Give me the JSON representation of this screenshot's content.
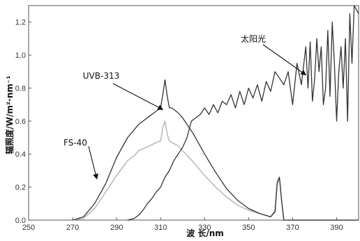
{
  "chart_data": {
    "type": "line",
    "title": "",
    "xlabel": "波 长/nm",
    "ylabel": "辐照度/W/m²·nm⁻¹",
    "xlim": [
      250,
      400
    ],
    "ylim": [
      0,
      1.3
    ],
    "xticks": [
      "250",
      "270",
      "290",
      "310",
      "330",
      "350",
      "370",
      "390"
    ],
    "yticks": [
      "0.0",
      "0.2",
      "0.4",
      "0.6",
      "0.8",
      "1.0",
      "1.2"
    ],
    "grid": false,
    "legend": "none",
    "series": [
      {
        "name": "UVB-313",
        "color": "#333333",
        "x": [
          270,
          275,
          280,
          285,
          290,
          295,
          300,
          305,
          308,
          310,
          311,
          312,
          313,
          314,
          315,
          318,
          320,
          325,
          330,
          335,
          340,
          345,
          350,
          355,
          360,
          362,
          363,
          364,
          365,
          366,
          368,
          370,
          380,
          390,
          400
        ],
        "y": [
          0.0,
          0.02,
          0.1,
          0.22,
          0.38,
          0.5,
          0.58,
          0.63,
          0.66,
          0.68,
          0.76,
          0.85,
          0.75,
          0.68,
          0.68,
          0.65,
          0.62,
          0.52,
          0.4,
          0.29,
          0.19,
          0.12,
          0.07,
          0.04,
          0.02,
          0.05,
          0.22,
          0.26,
          0.12,
          0.0,
          0.0,
          0.0,
          0.0,
          0.0,
          0.0
        ]
      },
      {
        "name": "FS-40",
        "color": "#bbbbbb",
        "x": [
          270,
          275,
          280,
          285,
          290,
          295,
          298,
          300,
          305,
          308,
          310,
          311,
          312,
          313,
          314,
          315,
          318,
          320,
          325,
          330,
          335,
          340,
          345,
          350,
          355,
          360,
          362,
          363,
          364,
          365,
          366,
          368,
          370,
          380,
          390,
          400
        ],
        "y": [
          0.0,
          0.01,
          0.07,
          0.17,
          0.27,
          0.36,
          0.39,
          0.42,
          0.45,
          0.47,
          0.48,
          0.56,
          0.6,
          0.52,
          0.48,
          0.47,
          0.45,
          0.42,
          0.35,
          0.27,
          0.2,
          0.14,
          0.09,
          0.06,
          0.04,
          0.02,
          0.06,
          0.24,
          0.26,
          0.12,
          0.0,
          0.0,
          0.0,
          0.0,
          0.0,
          0.0
        ]
      },
      {
        "name": "太阳光",
        "color": "#333333",
        "x": [
          295,
          298,
          300,
          302,
          304,
          306,
          308,
          310,
          312,
          314,
          316,
          318,
          320,
          322,
          324,
          326,
          328,
          330,
          332,
          334,
          336,
          338,
          340,
          342,
          344,
          346,
          348,
          350,
          352,
          354,
          356,
          358,
          360,
          362,
          364,
          366,
          368,
          370,
          372,
          374,
          376,
          377,
          378,
          379,
          380,
          381,
          382,
          383,
          384,
          385,
          386,
          387,
          388,
          389,
          390,
          391,
          392,
          393,
          394,
          395,
          396,
          397,
          398,
          400
        ],
        "y": [
          0.0,
          0.01,
          0.03,
          0.06,
          0.1,
          0.13,
          0.17,
          0.2,
          0.26,
          0.3,
          0.36,
          0.4,
          0.44,
          0.5,
          0.6,
          0.62,
          0.64,
          0.68,
          0.64,
          0.7,
          0.65,
          0.72,
          0.7,
          0.76,
          0.68,
          0.78,
          0.7,
          0.8,
          0.74,
          0.82,
          0.72,
          0.84,
          0.78,
          0.9,
          0.86,
          0.82,
          0.9,
          0.7,
          0.95,
          0.82,
          1.05,
          0.8,
          1.08,
          0.72,
          0.85,
          1.1,
          0.9,
          1.05,
          0.7,
          0.8,
          1.15,
          0.75,
          1.2,
          0.95,
          0.6,
          0.9,
          1.05,
          0.8,
          1.1,
          0.6,
          1.25,
          0.95,
          1.3,
          1.25
        ]
      }
    ],
    "annotations": [
      {
        "text": "UVB-313",
        "at_x": 311,
        "at_y": 0.67
      },
      {
        "text": "FS-40",
        "at_x": 281,
        "at_y": 0.25
      },
      {
        "text": "太阳光",
        "at_x": 376,
        "at_y": 0.88
      }
    ]
  }
}
